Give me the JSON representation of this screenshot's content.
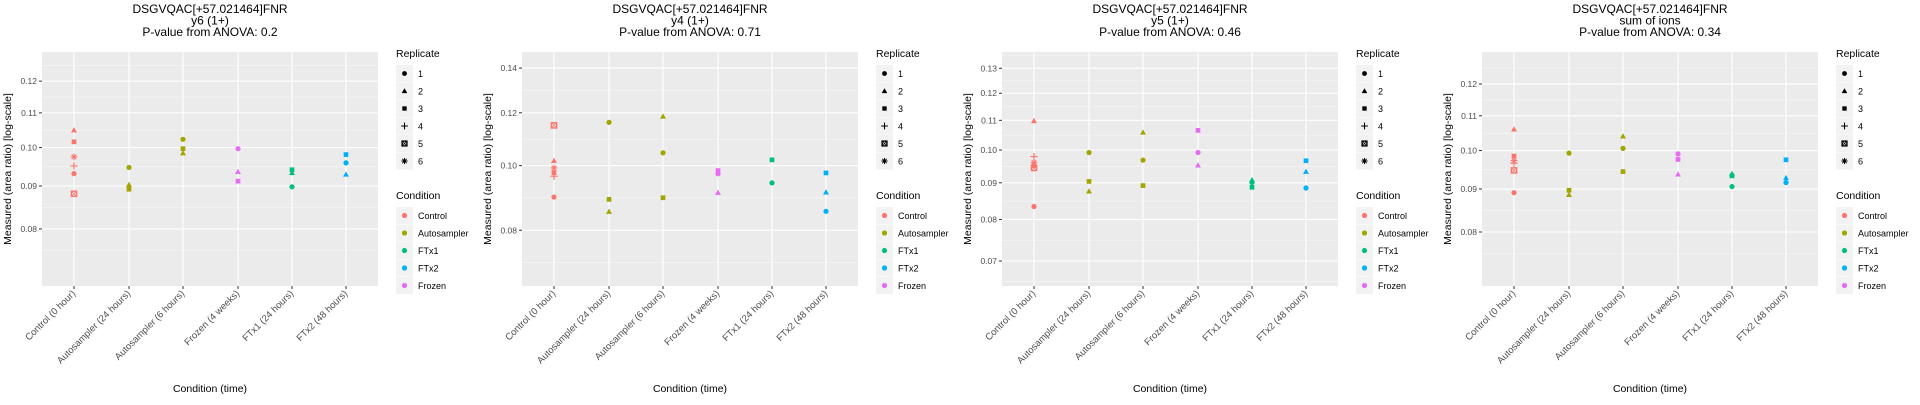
{
  "legend": {
    "replicate_title": "Replicate",
    "replicates": [
      {
        "label": "1",
        "shape": "circle"
      },
      {
        "label": "2",
        "shape": "triangle"
      },
      {
        "label": "3",
        "shape": "square"
      },
      {
        "label": "4",
        "shape": "plus"
      },
      {
        "label": "5",
        "shape": "square-x"
      },
      {
        "label": "6",
        "shape": "asterisk"
      }
    ],
    "condition_title": "Condition",
    "conditions": [
      {
        "label": "Control",
        "color": "#F8766D"
      },
      {
        "label": "Autosampler",
        "color": "#A3A500"
      },
      {
        "label": "FTx1",
        "color": "#00BF7D"
      },
      {
        "label": "FTx2",
        "color": "#00B0F6"
      },
      {
        "label": "Frozen",
        "color": "#E76BF3"
      }
    ]
  },
  "chart_data": [
    {
      "type": "scatter",
      "title": [
        "DSGVQAC[+57.021464]FNR",
        "y6 (1+)",
        "P-value from ANOVA: 0.2"
      ],
      "xlabel": "Condition (time)",
      "ylabel": "Measured (area ratio) [log-scale]",
      "yscale": "log",
      "ylim": [
        0.0684,
        0.13
      ],
      "yticks": [
        0.08,
        0.09,
        0.1,
        0.11,
        0.12
      ],
      "ytick_labels": [
        "0.08",
        "0.09",
        "0.10",
        "0.11",
        "0.12"
      ],
      "grid": true,
      "legend_position": "right",
      "categories": [
        "Control (0 hour)",
        "Autosampler (24 hours)",
        "Autosampler (6 hours)",
        "Frozen (4 weeks)",
        "FTx1 (24 hours)",
        "FTx2 (48 hours)"
      ],
      "points": [
        {
          "category": 0,
          "condition": "Control",
          "replicate": "2",
          "value": 0.1049
        },
        {
          "category": 0,
          "condition": "Control",
          "replicate": "3",
          "value": 0.1016
        },
        {
          "category": 0,
          "condition": "Control",
          "replicate": "6",
          "value": 0.0975
        },
        {
          "category": 0,
          "condition": "Control",
          "replicate": "4",
          "value": 0.0951
        },
        {
          "category": 0,
          "condition": "Control",
          "replicate": "1",
          "value": 0.0931
        },
        {
          "category": 0,
          "condition": "Control",
          "replicate": "5",
          "value": 0.0881
        },
        {
          "category": 1,
          "condition": "Autosampler",
          "replicate": "1",
          "value": 0.0947
        },
        {
          "category": 1,
          "condition": "Autosampler",
          "replicate": "2",
          "value": 0.0903
        },
        {
          "category": 1,
          "condition": "Autosampler",
          "replicate": "3",
          "value": 0.0892
        },
        {
          "category": 2,
          "condition": "Autosampler",
          "replicate": "1",
          "value": 0.1023
        },
        {
          "category": 2,
          "condition": "Autosampler",
          "replicate": "3",
          "value": 0.0997
        },
        {
          "category": 2,
          "condition": "Autosampler",
          "replicate": "2",
          "value": 0.0985
        },
        {
          "category": 3,
          "condition": "Frozen",
          "replicate": "1",
          "value": 0.0997
        },
        {
          "category": 3,
          "condition": "Frozen",
          "replicate": "2",
          "value": 0.0936
        },
        {
          "category": 3,
          "condition": "Frozen",
          "replicate": "3",
          "value": 0.0912
        },
        {
          "category": 4,
          "condition": "FTx1",
          "replicate": "3",
          "value": 0.0941
        },
        {
          "category": 4,
          "condition": "FTx1",
          "replicate": "2",
          "value": 0.0933
        },
        {
          "category": 4,
          "condition": "FTx1",
          "replicate": "1",
          "value": 0.0898
        },
        {
          "category": 5,
          "condition": "FTx2",
          "replicate": "3",
          "value": 0.0981
        },
        {
          "category": 5,
          "condition": "FTx2",
          "replicate": "1",
          "value": 0.0959
        },
        {
          "category": 5,
          "condition": "FTx2",
          "replicate": "2",
          "value": 0.0929
        }
      ]
    },
    {
      "type": "scatter",
      "title": [
        "DSGVQAC[+57.021464]FNR",
        "y4 (1+)",
        "P-value from ANOVA: 0.71"
      ],
      "xlabel": "Condition (time)",
      "ylabel": "Measured (area ratio) [log-scale]",
      "yscale": "log",
      "ylim": [
        0.066,
        0.148
      ],
      "yticks": [
        0.08,
        0.1,
        0.12,
        0.14
      ],
      "ytick_labels": [
        "0.08",
        "0.10",
        "0.12",
        "0.14"
      ],
      "grid": true,
      "legend_position": "right",
      "categories": [
        "Control (0 hour)",
        "Autosampler (24 hours)",
        "Autosampler (6 hours)",
        "Frozen (4 weeks)",
        "FTx1 (24 hours)",
        "FTx2 (48 hours)"
      ],
      "points": [
        {
          "category": 0,
          "condition": "Control",
          "replicate": "5",
          "value": 0.1149
        },
        {
          "category": 0,
          "condition": "Control",
          "replicate": "2",
          "value": 0.1017
        },
        {
          "category": 0,
          "condition": "Control",
          "replicate": "6",
          "value": 0.0992
        },
        {
          "category": 0,
          "condition": "Control",
          "replicate": "3",
          "value": 0.0976
        },
        {
          "category": 0,
          "condition": "Control",
          "replicate": "4",
          "value": 0.0964
        },
        {
          "category": 0,
          "condition": "Control",
          "replicate": "1",
          "value": 0.0897
        },
        {
          "category": 1,
          "condition": "Autosampler",
          "replicate": "1",
          "value": 0.1161
        },
        {
          "category": 1,
          "condition": "Autosampler",
          "replicate": "3",
          "value": 0.089
        },
        {
          "category": 1,
          "condition": "Autosampler",
          "replicate": "2",
          "value": 0.0853
        },
        {
          "category": 2,
          "condition": "Autosampler",
          "replicate": "2",
          "value": 0.1185
        },
        {
          "category": 2,
          "condition": "Autosampler",
          "replicate": "1",
          "value": 0.1045
        },
        {
          "category": 2,
          "condition": "Autosampler",
          "replicate": "3",
          "value": 0.0895
        },
        {
          "category": 3,
          "condition": "Frozen",
          "replicate": "3",
          "value": 0.0983
        },
        {
          "category": 3,
          "condition": "Frozen",
          "replicate": "1",
          "value": 0.0972
        },
        {
          "category": 3,
          "condition": "Frozen",
          "replicate": "2",
          "value": 0.0911
        },
        {
          "category": 4,
          "condition": "FTx1",
          "replicate": "3",
          "value": 0.102
        },
        {
          "category": 4,
          "condition": "FTx1",
          "replicate": "1",
          "value": 0.0942
        },
        {
          "category": 5,
          "condition": "FTx2",
          "replicate": "3",
          "value": 0.0975
        },
        {
          "category": 5,
          "condition": "FTx2",
          "replicate": "2",
          "value": 0.0912
        },
        {
          "category": 5,
          "condition": "FTx2",
          "replicate": "1",
          "value": 0.0854
        }
      ]
    },
    {
      "type": "scatter",
      "title": [
        "DSGVQAC[+57.021464]FNR",
        "y5 (1+)",
        "P-value from ANOVA: 0.46"
      ],
      "xlabel": "Condition (time)",
      "ylabel": "Measured (area ratio) [log-scale]",
      "yscale": "log",
      "ylim": [
        0.0646,
        0.137
      ],
      "yticks": [
        0.07,
        0.08,
        0.09,
        0.1,
        0.11,
        0.12,
        0.13
      ],
      "ytick_labels": [
        "0.07",
        "0.08",
        "0.09",
        "0.10",
        "0.11",
        "0.12",
        "0.13"
      ],
      "grid": true,
      "legend_position": "right",
      "categories": [
        "Control (0 hour)",
        "Autosampler (24 hours)",
        "Autosampler (6 hours)",
        "Frozen (4 weeks)",
        "FTx1 (24 hours)",
        "FTx2 (48 hours)"
      ],
      "points": [
        {
          "category": 0,
          "condition": "Control",
          "replicate": "2",
          "value": 0.1098
        },
        {
          "category": 0,
          "condition": "Control",
          "replicate": "4",
          "value": 0.0979
        },
        {
          "category": 0,
          "condition": "Control",
          "replicate": "6",
          "value": 0.0961
        },
        {
          "category": 0,
          "condition": "Control",
          "replicate": "3",
          "value": 0.0951
        },
        {
          "category": 0,
          "condition": "Control",
          "replicate": "5",
          "value": 0.0944
        },
        {
          "category": 0,
          "condition": "Control",
          "replicate": "1",
          "value": 0.0834
        },
        {
          "category": 1,
          "condition": "Autosampler",
          "replicate": "1",
          "value": 0.0992
        },
        {
          "category": 1,
          "condition": "Autosampler",
          "replicate": "3",
          "value": 0.0904
        },
        {
          "category": 1,
          "condition": "Autosampler",
          "replicate": "2",
          "value": 0.0876
        },
        {
          "category": 2,
          "condition": "Autosampler",
          "replicate": "2",
          "value": 0.1058
        },
        {
          "category": 2,
          "condition": "Autosampler",
          "replicate": "1",
          "value": 0.0968
        },
        {
          "category": 2,
          "condition": "Autosampler",
          "replicate": "3",
          "value": 0.0892
        },
        {
          "category": 3,
          "condition": "Frozen",
          "replicate": "3",
          "value": 0.1065
        },
        {
          "category": 3,
          "condition": "Frozen",
          "replicate": "1",
          "value": 0.0992
        },
        {
          "category": 3,
          "condition": "Frozen",
          "replicate": "2",
          "value": 0.0952
        },
        {
          "category": 4,
          "condition": "FTx1",
          "replicate": "2",
          "value": 0.0908
        },
        {
          "category": 4,
          "condition": "FTx1",
          "replicate": "1",
          "value": 0.0901
        },
        {
          "category": 4,
          "condition": "FTx1",
          "replicate": "3",
          "value": 0.0887
        },
        {
          "category": 5,
          "condition": "FTx2",
          "replicate": "3",
          "value": 0.0966
        },
        {
          "category": 5,
          "condition": "FTx2",
          "replicate": "2",
          "value": 0.0933
        },
        {
          "category": 5,
          "condition": "FTx2",
          "replicate": "1",
          "value": 0.0885
        }
      ]
    },
    {
      "type": "scatter",
      "title": [
        "DSGVQAC[+57.021464]FNR",
        "sum of ions",
        "P-value from ANOVA: 0.34"
      ],
      "xlabel": "Condition (time)",
      "ylabel": "Measured (area ratio) [log-scale]",
      "yscale": "log",
      "ylim": [
        0.069,
        0.131
      ],
      "yticks": [
        0.08,
        0.09,
        0.1,
        0.11,
        0.12
      ],
      "ytick_labels": [
        "0.08",
        "0.09",
        "0.10",
        "0.11",
        "0.12"
      ],
      "grid": true,
      "legend_position": "right",
      "categories": [
        "Control (0 hour)",
        "Autosampler (24 hours)",
        "Autosampler (6 hours)",
        "Frozen (4 weeks)",
        "FTx1 (24 hours)",
        "FTx2 (48 hours)"
      ],
      "points": [
        {
          "category": 0,
          "condition": "Control",
          "replicate": "2",
          "value": 0.106
        },
        {
          "category": 0,
          "condition": "Control",
          "replicate": "3",
          "value": 0.0985
        },
        {
          "category": 0,
          "condition": "Control",
          "replicate": "6",
          "value": 0.0973
        },
        {
          "category": 0,
          "condition": "Control",
          "replicate": "4",
          "value": 0.0966
        },
        {
          "category": 0,
          "condition": "Control",
          "replicate": "5",
          "value": 0.0947
        },
        {
          "category": 0,
          "condition": "Control",
          "replicate": "1",
          "value": 0.0891
        },
        {
          "category": 1,
          "condition": "Autosampler",
          "replicate": "1",
          "value": 0.0993
        },
        {
          "category": 1,
          "condition": "Autosampler",
          "replicate": "3",
          "value": 0.0897
        },
        {
          "category": 1,
          "condition": "Autosampler",
          "replicate": "2",
          "value": 0.0886
        },
        {
          "category": 2,
          "condition": "Autosampler",
          "replicate": "2",
          "value": 0.104
        },
        {
          "category": 2,
          "condition": "Autosampler",
          "replicate": "1",
          "value": 0.1006
        },
        {
          "category": 2,
          "condition": "Autosampler",
          "replicate": "3",
          "value": 0.0944
        },
        {
          "category": 3,
          "condition": "Frozen",
          "replicate": "1",
          "value": 0.0991
        },
        {
          "category": 3,
          "condition": "Frozen",
          "replicate": "3",
          "value": 0.0976
        },
        {
          "category": 3,
          "condition": "Frozen",
          "replicate": "2",
          "value": 0.0937
        },
        {
          "category": 4,
          "condition": "FTx1",
          "replicate": "2",
          "value": 0.0938
        },
        {
          "category": 4,
          "condition": "FTx1",
          "replicate": "3",
          "value": 0.0933
        },
        {
          "category": 4,
          "condition": "FTx1",
          "replicate": "1",
          "value": 0.0906
        },
        {
          "category": 5,
          "condition": "FTx2",
          "replicate": "3",
          "value": 0.0975
        },
        {
          "category": 5,
          "condition": "FTx2",
          "replicate": "2",
          "value": 0.0928
        },
        {
          "category": 5,
          "condition": "FTx2",
          "replicate": "1",
          "value": 0.0916
        }
      ]
    }
  ]
}
